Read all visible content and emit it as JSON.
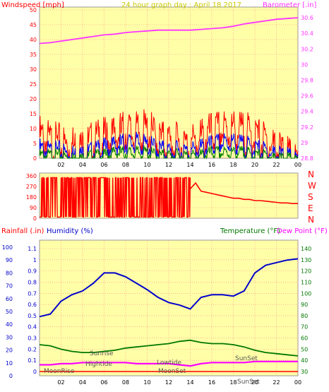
{
  "header": {
    "title": "24 hour graph day : April 18 2017",
    "left_label": "Windspeed [mph]",
    "right_label": "Barometer [.in]"
  },
  "colors": {
    "plot_bg": "#ffffa8",
    "gust": "#ff0000",
    "avg_wind": "#0000ff",
    "min_wind": "#008000",
    "barometer": "#ff33ff",
    "direction": "#ff0000",
    "humidity": "#0000cc",
    "temperature": "#007700",
    "dew_point": "#ff00ff",
    "rain": "#ff0000",
    "title": "#c8c800",
    "grid": "#ff8080"
  },
  "time_ticks": [
    "02",
    "04",
    "06",
    "08",
    "10",
    "12",
    "14",
    "16",
    "18",
    "20",
    "22",
    "00"
  ],
  "chart_data": [
    {
      "type": "line",
      "name_label": "windspeed-barometer",
      "ylabel": "Windspeed [mph]",
      "y2label": "Barometer [.in]",
      "ylim": [
        0,
        50
      ],
      "y_ticks": [
        "0",
        "5",
        "10",
        "15",
        "20",
        "25",
        "30",
        "35",
        "40",
        "45",
        "50"
      ],
      "y2lim": [
        28.8,
        30.7
      ],
      "y2_ticks": [
        "28.8",
        "29",
        "29.2",
        "29.4",
        "29.6",
        "29.8",
        "30",
        "30.2",
        "30.4",
        "30.6"
      ],
      "x": [
        0,
        1,
        2,
        3,
        4,
        5,
        6,
        7,
        8,
        9,
        10,
        11,
        12,
        13,
        14,
        15,
        16,
        17,
        18,
        19,
        20,
        21,
        22,
        23,
        24
      ],
      "series": [
        {
          "key": "gust",
          "values": [
            11,
            9,
            8,
            8,
            7,
            9,
            10,
            11,
            13,
            12,
            13,
            10,
            9,
            8,
            8,
            10,
            12,
            13,
            13,
            12,
            11,
            9,
            7,
            4,
            1
          ]
        },
        {
          "key": "avg_wind",
          "values": [
            5,
            4,
            4,
            3,
            3,
            4,
            5,
            6,
            7,
            7,
            6,
            5,
            4,
            4,
            4,
            5,
            6,
            7,
            7,
            6,
            5,
            4,
            3,
            2,
            0.5
          ]
        },
        {
          "key": "min_wind",
          "values": [
            2,
            2,
            2,
            1,
            1,
            2,
            2,
            3,
            3,
            3,
            3,
            2,
            2,
            2,
            2,
            2,
            3,
            3,
            3,
            3,
            2,
            2,
            1,
            1,
            0
          ]
        },
        {
          "key": "barometer",
          "values": [
            30.27,
            30.28,
            30.3,
            30.32,
            30.34,
            30.36,
            30.38,
            30.39,
            30.41,
            30.42,
            30.43,
            30.44,
            30.44,
            30.44,
            30.44,
            30.45,
            30.46,
            30.47,
            30.49,
            30.52,
            30.54,
            30.56,
            30.58,
            30.59,
            30.6
          ]
        }
      ]
    },
    {
      "type": "line",
      "name_label": "wind-direction",
      "ylim": [
        0,
        360
      ],
      "y_ticks": [
        "0",
        "90",
        "180",
        "270",
        "360"
      ],
      "direction_labels": [
        "N",
        "W",
        "S",
        "E",
        "N"
      ],
      "x": [
        0,
        0.5,
        1,
        1.5,
        2,
        2.5,
        3,
        3.5,
        4,
        4.5,
        5,
        5.5,
        6,
        6.5,
        7,
        7.5,
        8,
        8.5,
        9,
        9.5,
        10,
        10.5,
        11,
        11.5,
        12,
        12.5,
        13,
        13.5,
        14,
        14.5,
        15,
        15.5,
        16,
        16.5,
        17,
        17.5,
        18,
        18.5,
        19,
        19.5,
        20,
        20.5,
        21,
        21.5,
        22,
        22.5,
        23,
        23.5,
        24
      ],
      "values": [
        340,
        30,
        330,
        20,
        340,
        10,
        350,
        20,
        340,
        10,
        330,
        350,
        20,
        340,
        10,
        350,
        30,
        340,
        20,
        330,
        350,
        10,
        340,
        30,
        350,
        20,
        340,
        60,
        250,
        300,
        230,
        220,
        210,
        200,
        190,
        180,
        170,
        170,
        160,
        160,
        150,
        150,
        145,
        140,
        135,
        130,
        130,
        125,
        125
      ]
    },
    {
      "type": "line",
      "name_label": "temp-humidity-rain",
      "y_ticks_humidity": [
        "0",
        "10",
        "20",
        "30",
        "40",
        "50",
        "60",
        "70",
        "80",
        "90",
        "100"
      ],
      "y_ticks_rain": [
        "0",
        "0.1",
        "0.2",
        "0.3",
        "0.4",
        "0.5",
        "0.6",
        "0.7",
        "0.8",
        "0.9",
        "1",
        "1.1"
      ],
      "y_ticks_temp": [
        "30",
        "40",
        "50",
        "60",
        "70",
        "80",
        "90",
        "100",
        "110",
        "120",
        "130",
        "140"
      ],
      "humidity_lim": [
        0,
        100
      ],
      "temp_lim": [
        30,
        145
      ],
      "x": [
        0,
        1,
        2,
        3,
        4,
        5,
        6,
        7,
        8,
        9,
        10,
        11,
        12,
        13,
        14,
        15,
        16,
        17,
        18,
        19,
        20,
        21,
        22,
        23,
        24
      ],
      "series": [
        {
          "key": "humidity",
          "values": [
            46,
            48,
            58,
            63,
            66,
            72,
            80,
            80,
            77,
            72,
            67,
            61,
            57,
            55,
            52,
            61,
            63,
            63,
            62,
            66,
            80,
            86,
            88,
            90,
            91
          ]
        },
        {
          "key": "temperature",
          "values": [
            54,
            53,
            50,
            48,
            47,
            47,
            48,
            49,
            51,
            52,
            53,
            54,
            55,
            57,
            58,
            56,
            55,
            55,
            54,
            52,
            49,
            47,
            46,
            45,
            44
          ]
        },
        {
          "key": "dew_point",
          "values": [
            36,
            36,
            37,
            37,
            38,
            38,
            38,
            38,
            38,
            37,
            37,
            37,
            37,
            36,
            35,
            37,
            38,
            38,
            38,
            38,
            39,
            39,
            39,
            39,
            39
          ]
        },
        {
          "key": "rain",
          "values": [
            0,
            0,
            0,
            0,
            0,
            0,
            0,
            0,
            0,
            0,
            0,
            0,
            0,
            0,
            0,
            0,
            0,
            0,
            0,
            0,
            0,
            0,
            0,
            0,
            0
          ]
        }
      ]
    }
  ],
  "bottom_chart": {
    "rain_label": "Rainfall (.in)",
    "humidity_label": "Humidity (%)",
    "temp_label": "Temperature (°F)",
    "dew_label": "Dew Point (°F)"
  },
  "annotations": {
    "sunrise": "Sunrise",
    "sunset": "SunSet",
    "hightide": "Hightide",
    "lowtide": "Lowtide",
    "moonrise": "MoonRise",
    "moonset": "MoonSet"
  }
}
